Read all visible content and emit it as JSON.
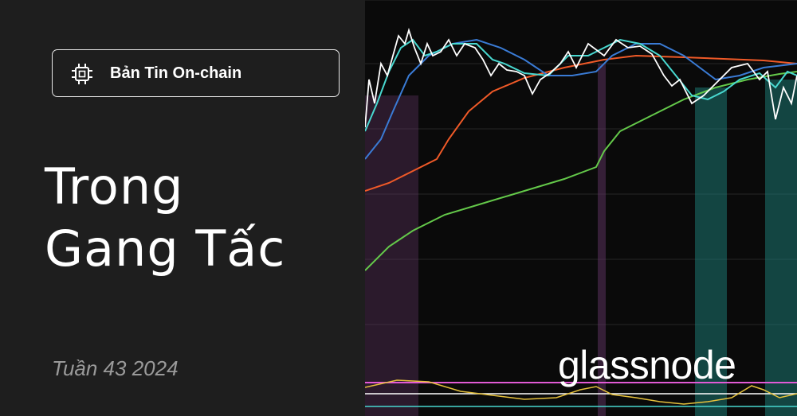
{
  "badge": "Bản Tin On-chain",
  "title": [
    "Trong",
    "Gang Tấc"
  ],
  "subtitle": "Tuần 43 2024",
  "logo": "glassnode"
}
